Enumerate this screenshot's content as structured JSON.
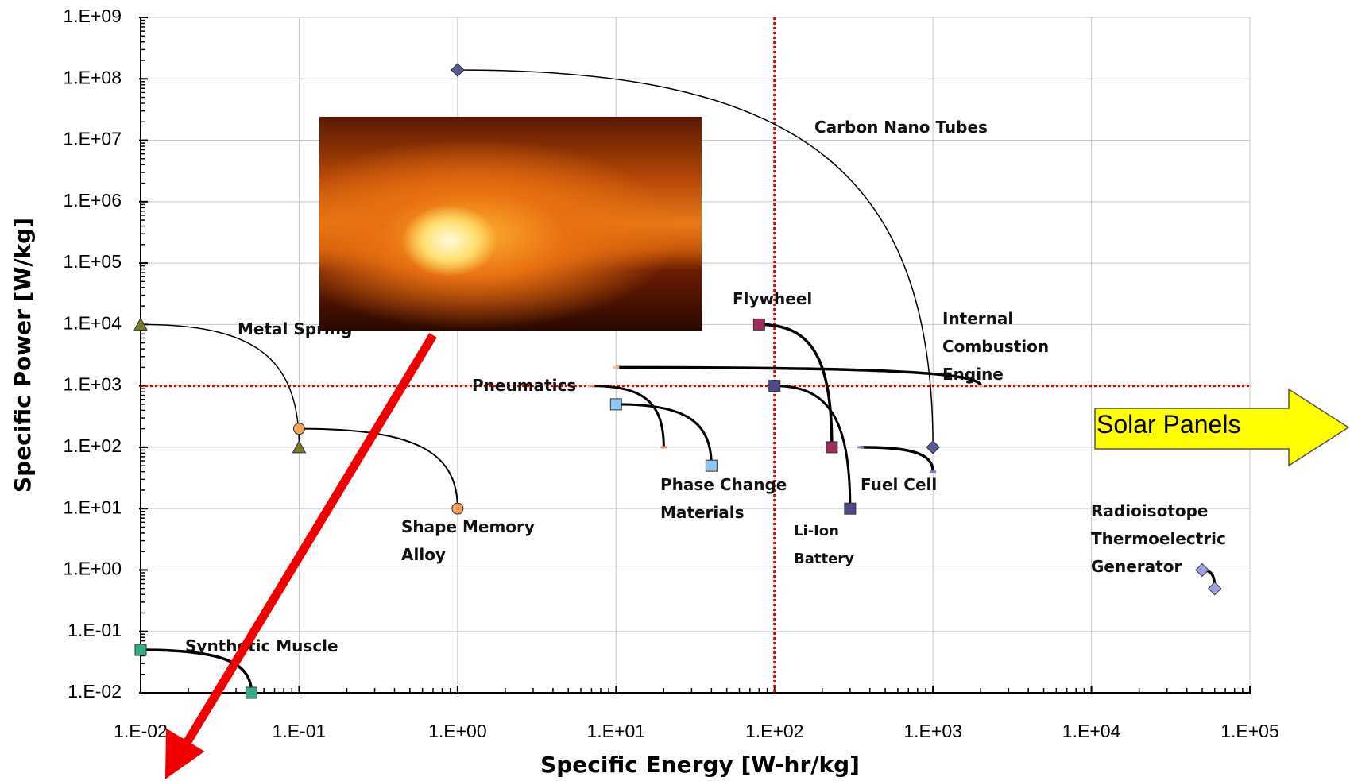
{
  "chart_data": {
    "type": "scatter",
    "xlabel": "Specific Energy [W-hr/kg]",
    "ylabel": "Specific Power [W/kg]",
    "xscale": "log",
    "yscale": "log",
    "grid": true,
    "xlim": [
      0.01,
      100000
    ],
    "ylim": [
      0.01,
      1000000000
    ],
    "xticks": [
      {
        "value": 0.01,
        "label": "1.E-02"
      },
      {
        "value": 0.1,
        "label": "1.E-01"
      },
      {
        "value": 1,
        "label": "1.E+00"
      },
      {
        "value": 10,
        "label": "1.E+01"
      },
      {
        "value": 100,
        "label": "1.E+02"
      },
      {
        "value": 1000,
        "label": "1.E+03"
      },
      {
        "value": 10000,
        "label": "1.E+04"
      },
      {
        "value": 100000,
        "label": "1.E+05"
      }
    ],
    "yticks": [
      {
        "value": 0.01,
        "label": "1.E-02"
      },
      {
        "value": 0.1,
        "label": "1.E-01"
      },
      {
        "value": 1,
        "label": "1.E+00"
      },
      {
        "value": 10,
        "label": "1.E+01"
      },
      {
        "value": 100,
        "label": "1.E+02"
      },
      {
        "value": 1000,
        "label": "1.E+03"
      },
      {
        "value": 10000,
        "label": "1.E+04"
      },
      {
        "value": 100000,
        "label": "1.E+05"
      },
      {
        "value": 1000000,
        "label": "1.E+06"
      },
      {
        "value": 10000000,
        "label": "1.E+07"
      },
      {
        "value": 100000000,
        "label": "1.E+08"
      },
      {
        "value": 1000000000,
        "label": "1.E+09"
      }
    ],
    "reference_lines": {
      "x": [
        100
      ],
      "y": [
        1000
      ],
      "color": "#e00000"
    },
    "series": [
      {
        "name": "Carbon Nano Tubes",
        "color": "#5a5a96",
        "marker": "diamond",
        "x": [
          1,
          1000
        ],
        "y": [
          140000000,
          100
        ]
      },
      {
        "name": "Metal Spring",
        "color": "#7b7b2c",
        "marker": "triangle",
        "x": [
          0.01,
          0.1
        ],
        "y": [
          10000,
          100
        ]
      },
      {
        "name": "Shape Memory Alloy",
        "color": "#f4a05a",
        "marker": "circle",
        "x": [
          0.1,
          1
        ],
        "y": [
          200,
          10
        ]
      },
      {
        "name": "Synthetic Muscle",
        "color": "#3aa88a",
        "marker": "square",
        "x": [
          0.01,
          0.05
        ],
        "y": [
          0.05,
          0.01
        ]
      },
      {
        "name": "Pneumatics",
        "color": "#f08070",
        "marker": "dash",
        "x": [
          7,
          20
        ],
        "y": [
          1000,
          100
        ]
      },
      {
        "name": "Phase Change Materials",
        "color": "#8ec8f0",
        "marker": "square",
        "x": [
          10,
          40
        ],
        "y": [
          500,
          50
        ]
      },
      {
        "name": "Flywheel",
        "color": "#9c2c5c",
        "marker": "square",
        "x": [
          80,
          230
        ],
        "y": [
          10000,
          100
        ]
      },
      {
        "name": "Li-Ion Battery",
        "color": "#4c4c8c",
        "marker": "square",
        "x": [
          100,
          300
        ],
        "y": [
          1000,
          10
        ]
      },
      {
        "name": "Internal Combustion Engine",
        "color": "#f0c090",
        "marker": "dash",
        "x": [
          10,
          2000
        ],
        "y": [
          2000,
          1000
        ]
      },
      {
        "name": "Fuel Cell",
        "color": "#8080c0",
        "marker": "dash",
        "x": [
          350,
          1000
        ],
        "y": [
          100,
          40
        ]
      },
      {
        "name": "Radioisotope Thermoelectric Generator",
        "color": "#a0a0e0",
        "marker": "diamond",
        "x": [
          50000,
          60000
        ],
        "y": [
          1,
          0.5
        ]
      }
    ],
    "annotations": [
      "Solar Panels"
    ]
  }
}
